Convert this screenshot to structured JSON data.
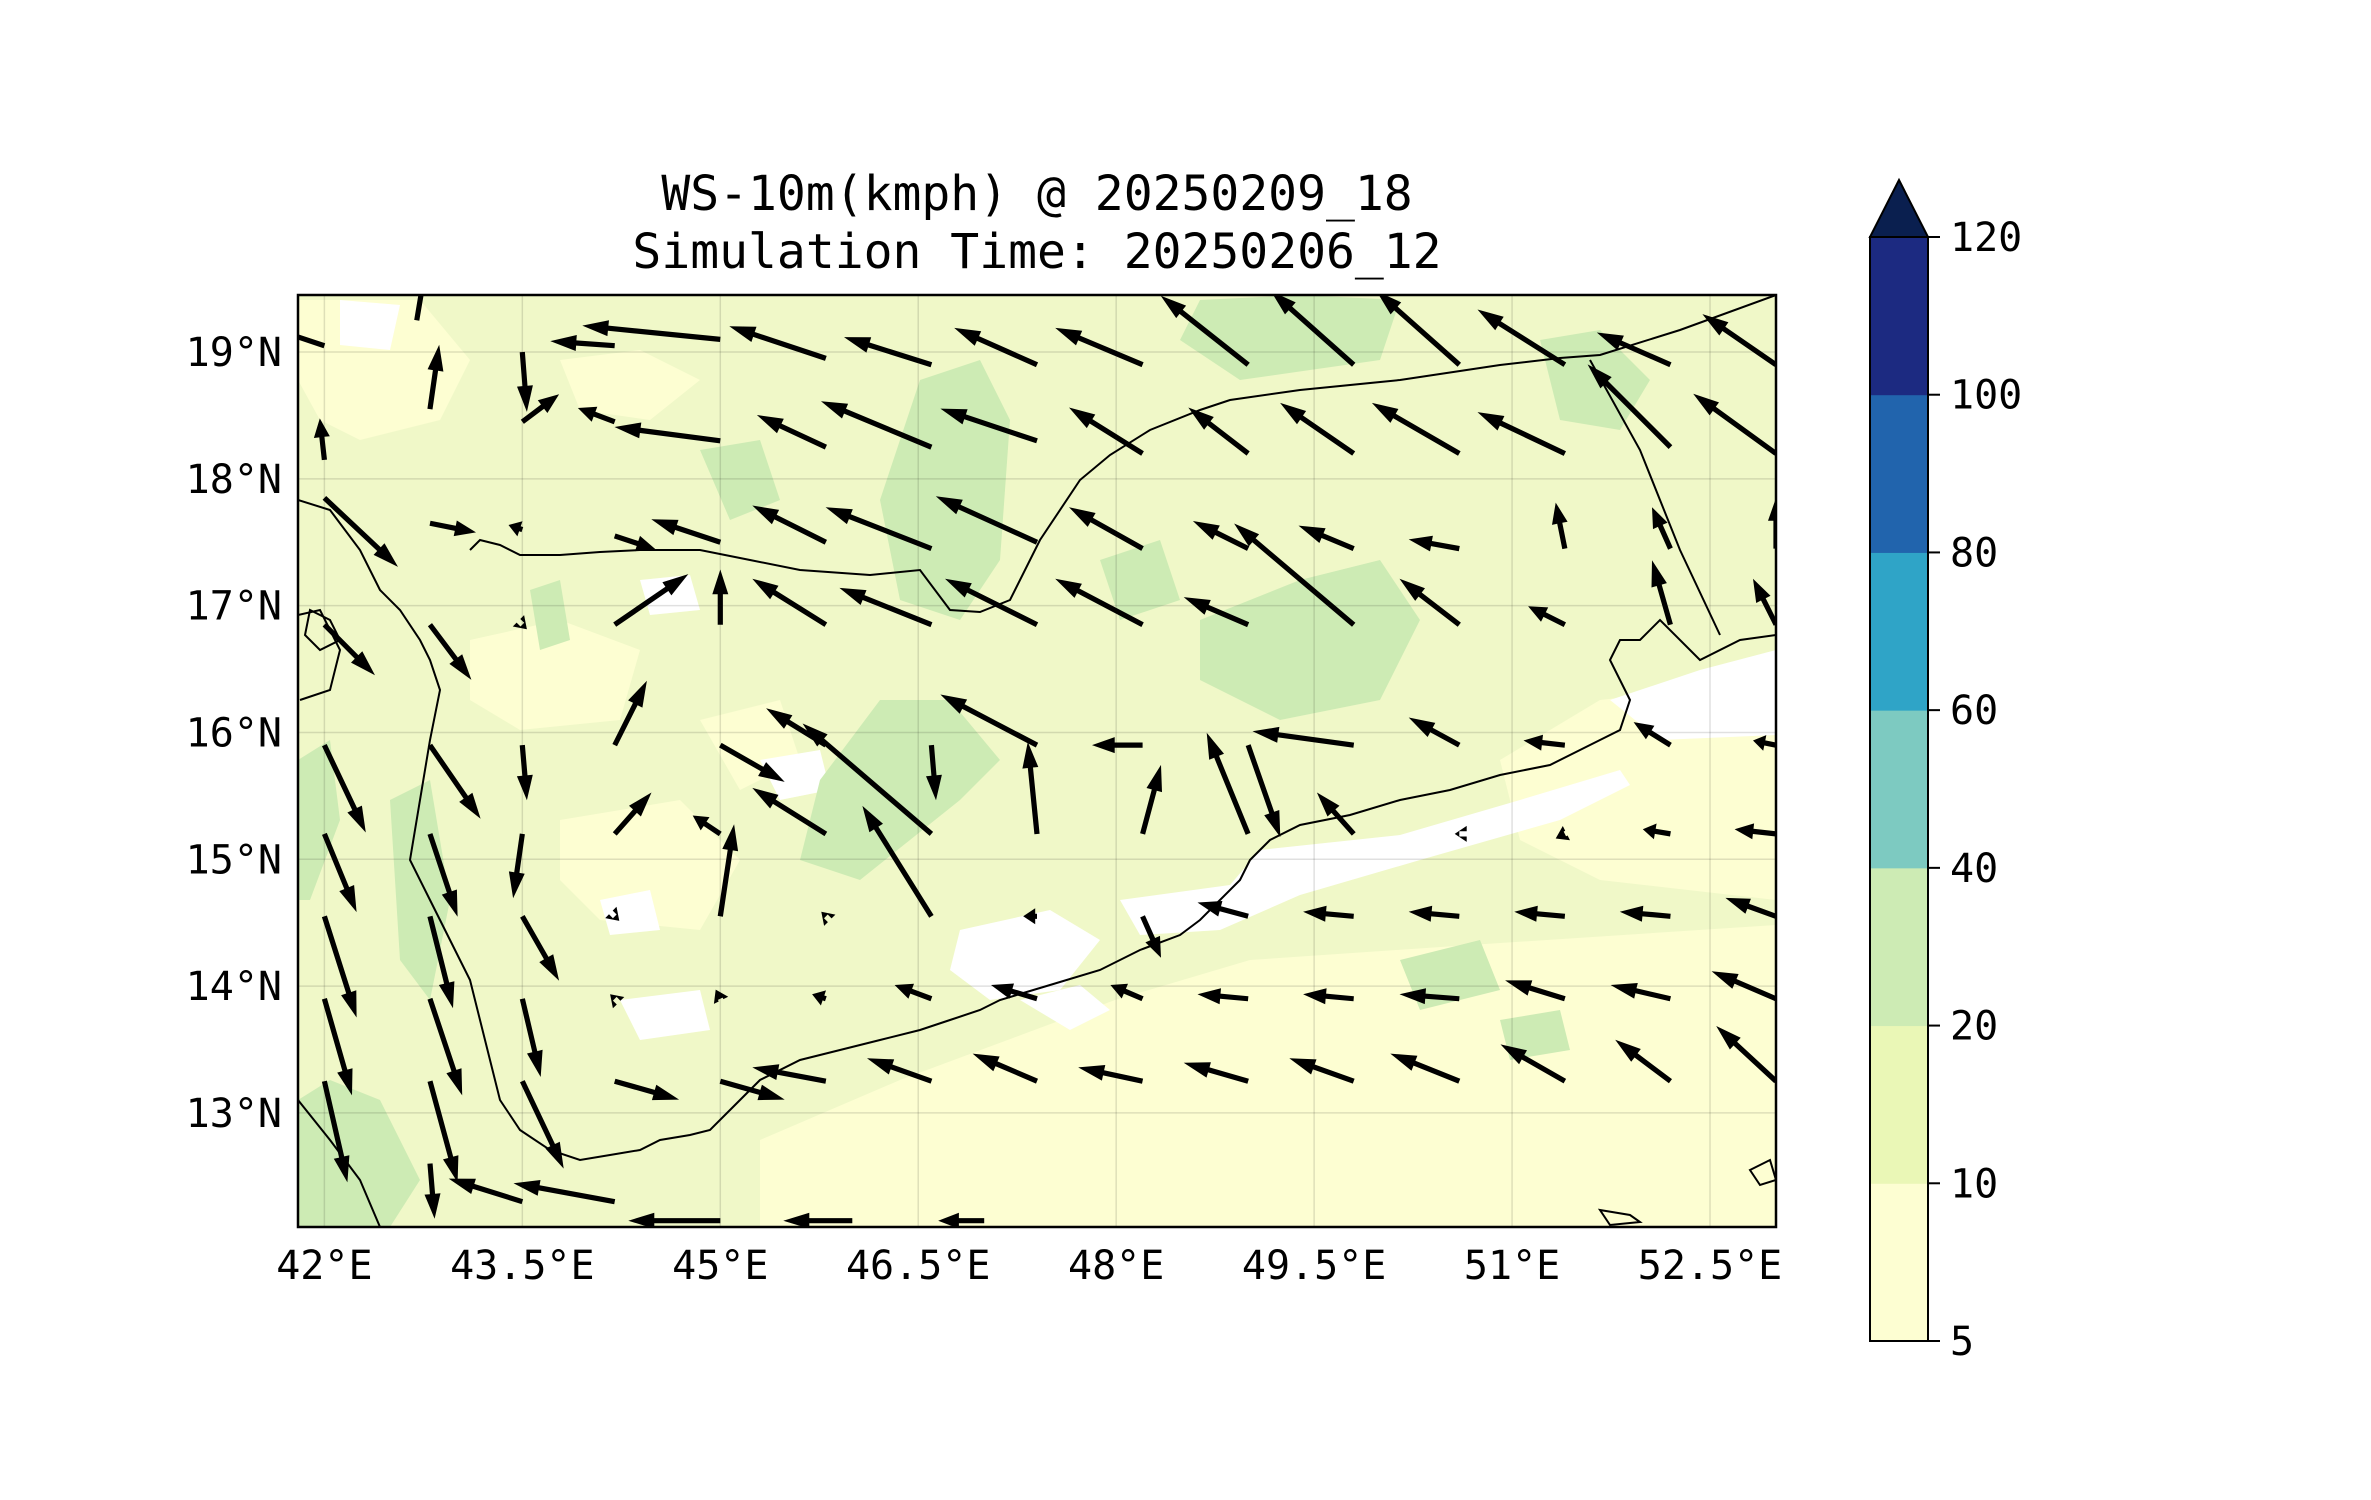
{
  "title": {
    "line1": "WS-10m(kmph) @ 20250209_18",
    "line2": "Simulation Time: 20250206_12"
  },
  "map": {
    "lon_range": [
      41.8,
      53.0
    ],
    "lat_range": [
      12.1,
      19.45
    ],
    "lon_ticks": [
      {
        "value": 42.0,
        "label": "42°E"
      },
      {
        "value": 43.5,
        "label": "43.5°E"
      },
      {
        "value": 45.0,
        "label": "45°E"
      },
      {
        "value": 46.5,
        "label": "46.5°E"
      },
      {
        "value": 48.0,
        "label": "48°E"
      },
      {
        "value": 49.5,
        "label": "49.5°E"
      },
      {
        "value": 51.0,
        "label": "51°E"
      },
      {
        "value": 52.5,
        "label": "52.5°E"
      }
    ],
    "lat_ticks": [
      {
        "value": 19.0,
        "label": "19°N"
      },
      {
        "value": 18.0,
        "label": "18°N"
      },
      {
        "value": 17.0,
        "label": "17°N"
      },
      {
        "value": 16.0,
        "label": "16°N"
      },
      {
        "value": 15.0,
        "label": "15°N"
      },
      {
        "value": 14.0,
        "label": "14°N"
      },
      {
        "value": 13.0,
        "label": "13°N"
      }
    ],
    "grid": true,
    "background_color": "#f0f8c8",
    "coastline_color": "#000000"
  },
  "colorbar": {
    "levels": [
      5,
      10,
      20,
      40,
      60,
      80,
      100,
      120
    ],
    "labels": [
      "5",
      "10",
      "20",
      "40",
      "60",
      "80",
      "100",
      "120"
    ],
    "colors": [
      "#fdfed2",
      "#eaf7b6",
      "#cdebb4",
      "#7dcac1",
      "#2fa4c7",
      "#2164ad",
      "#1c2a81"
    ],
    "extend_color": "#0a1f4f",
    "extend": "max"
  },
  "chart_data": {
    "type": "quiver",
    "units": "kmph",
    "vectors": [
      [
        42.0,
        19.05,
        -1.2,
        0.4
      ],
      [
        42.7,
        19.25,
        0.3,
        1.8
      ],
      [
        43.5,
        19.0,
        0.1,
        -1.3
      ],
      [
        44.2,
        19.05,
        -1.4,
        0.1
      ],
      [
        45.0,
        19.1,
        -3.0,
        0.3
      ],
      [
        45.8,
        18.95,
        -2.1,
        0.7
      ],
      [
        46.6,
        18.9,
        -1.9,
        0.6
      ],
      [
        47.4,
        18.9,
        -1.8,
        0.8
      ],
      [
        48.2,
        18.9,
        -1.9,
        0.8
      ],
      [
        49.0,
        18.9,
        -1.9,
        1.5
      ],
      [
        49.8,
        18.9,
        -1.8,
        1.6
      ],
      [
        50.6,
        18.9,
        -1.8,
        1.6
      ],
      [
        51.4,
        18.9,
        -1.9,
        1.2
      ],
      [
        52.2,
        18.9,
        -1.6,
        0.7
      ],
      [
        53.0,
        18.9,
        -1.6,
        1.1
      ],
      [
        42.0,
        18.15,
        -0.1,
        0.9
      ],
      [
        42.8,
        18.55,
        0.2,
        1.4
      ],
      [
        43.5,
        18.45,
        0.8,
        0.6
      ],
      [
        44.2,
        18.45,
        -0.8,
        0.3
      ],
      [
        45.0,
        18.3,
        -2.3,
        0.3
      ],
      [
        45.8,
        18.25,
        -1.5,
        0.7
      ],
      [
        46.6,
        18.25,
        -2.4,
        1.0
      ],
      [
        47.4,
        18.3,
        -2.1,
        0.7
      ],
      [
        48.2,
        18.2,
        -1.6,
        1.0
      ],
      [
        49.0,
        18.2,
        -1.3,
        1.0
      ],
      [
        49.8,
        18.2,
        -1.6,
        1.1
      ],
      [
        50.6,
        18.2,
        -1.9,
        1.1
      ],
      [
        51.4,
        18.2,
        -1.9,
        0.9
      ],
      [
        52.2,
        18.25,
        -1.8,
        1.8
      ],
      [
        53.0,
        18.2,
        -1.8,
        1.3
      ],
      [
        42.0,
        17.85,
        1.6,
        -1.5
      ],
      [
        42.8,
        17.65,
        1.0,
        -0.2
      ],
      [
        43.5,
        17.6,
        -0.3,
        0.1
      ],
      [
        44.2,
        17.55,
        0.9,
        -0.3
      ],
      [
        45.0,
        17.5,
        -1.5,
        0.5
      ],
      [
        45.8,
        17.5,
        -1.6,
        0.8
      ],
      [
        46.6,
        17.45,
        -2.3,
        0.9
      ],
      [
        47.4,
        17.5,
        -2.2,
        1.0
      ],
      [
        48.2,
        17.45,
        -1.6,
        0.9
      ],
      [
        49.0,
        17.45,
        -1.2,
        0.6
      ],
      [
        49.8,
        17.45,
        -1.2,
        0.5
      ],
      [
        50.6,
        17.45,
        -1.1,
        0.2
      ],
      [
        51.4,
        17.45,
        -0.2,
        1.0
      ],
      [
        52.2,
        17.45,
        -0.4,
        0.9
      ],
      [
        53.0,
        17.45,
        0.0,
        1.1
      ],
      [
        42.0,
        16.85,
        1.1,
        -1.1
      ],
      [
        42.8,
        16.85,
        0.9,
        -1.2
      ],
      [
        43.5,
        16.85,
        0.1,
        -0.1
      ],
      [
        44.2,
        16.85,
        1.6,
        1.1
      ],
      [
        45.0,
        16.85,
        0.0,
        1.2
      ],
      [
        45.8,
        16.85,
        -1.6,
        1.0
      ],
      [
        46.6,
        16.85,
        -2.0,
        0.8
      ],
      [
        47.4,
        16.85,
        -2.0,
        1.0
      ],
      [
        48.2,
        16.85,
        -1.9,
        1.0
      ],
      [
        49.0,
        16.85,
        -1.4,
        0.6
      ],
      [
        49.8,
        16.85,
        -2.6,
        2.2
      ],
      [
        50.6,
        16.85,
        -1.3,
        1.0
      ],
      [
        51.4,
        16.85,
        -0.8,
        0.4
      ],
      [
        52.2,
        16.85,
        -0.4,
        1.4
      ],
      [
        53.0,
        16.85,
        -0.5,
        1.0
      ],
      [
        42.0,
        15.9,
        0.9,
        -1.9
      ],
      [
        42.8,
        15.9,
        1.1,
        -1.6
      ],
      [
        43.5,
        15.9,
        0.1,
        -1.2
      ],
      [
        44.2,
        15.9,
        0.7,
        1.4
      ],
      [
        45.0,
        15.9,
        1.4,
        -0.8
      ],
      [
        45.8,
        15.9,
        -1.3,
        0.8
      ],
      [
        46.6,
        15.9,
        0.1,
        -1.2
      ],
      [
        47.4,
        15.9,
        -2.1,
        1.1
      ],
      [
        48.2,
        15.9,
        -1.1,
        0.0
      ],
      [
        49.0,
        15.9,
        0.7,
        -2.0
      ],
      [
        49.8,
        15.9,
        -2.2,
        0.3
      ],
      [
        50.6,
        15.9,
        -1.1,
        0.6
      ],
      [
        51.4,
        15.9,
        -0.9,
        0.1
      ],
      [
        52.2,
        15.9,
        -0.8,
        0.5
      ],
      [
        53.0,
        15.9,
        -0.5,
        0.1
      ],
      [
        42.0,
        15.2,
        0.7,
        -1.7
      ],
      [
        42.8,
        15.2,
        0.6,
        -1.8
      ],
      [
        43.5,
        15.2,
        -0.2,
        -1.4
      ],
      [
        44.2,
        15.2,
        0.8,
        0.9
      ],
      [
        45.0,
        15.2,
        -0.6,
        0.4
      ],
      [
        45.8,
        15.2,
        -1.6,
        1.0
      ],
      [
        46.6,
        15.2,
        -2.8,
        2.4
      ],
      [
        47.4,
        15.2,
        -0.2,
        2.0
      ],
      [
        48.2,
        15.2,
        0.4,
        1.5
      ],
      [
        49.0,
        15.2,
        -0.9,
        2.2
      ],
      [
        49.8,
        15.2,
        -0.8,
        0.9
      ],
      [
        50.6,
        15.2,
        -0.1,
        0.0
      ],
      [
        51.4,
        15.2,
        -0.2,
        -0.1
      ],
      [
        52.2,
        15.2,
        -0.6,
        0.1
      ],
      [
        53.0,
        15.2,
        -0.9,
        0.1
      ],
      [
        42.0,
        14.55,
        0.7,
        -2.2
      ],
      [
        42.8,
        14.55,
        0.5,
        -2.0
      ],
      [
        43.5,
        14.55,
        0.8,
        -1.4
      ],
      [
        44.2,
        14.55,
        0.1,
        -0.1
      ],
      [
        45.0,
        14.55,
        0.3,
        2.0
      ],
      [
        45.8,
        14.55,
        -0.1,
        0.1
      ],
      [
        46.6,
        14.55,
        -1.5,
        2.4
      ],
      [
        47.4,
        14.55,
        -0.3,
        0.0
      ],
      [
        48.2,
        14.55,
        0.4,
        -0.9
      ],
      [
        49.0,
        14.55,
        -1.1,
        0.3
      ],
      [
        49.8,
        14.55,
        -1.1,
        0.1
      ],
      [
        50.6,
        14.55,
        -1.1,
        0.1
      ],
      [
        51.4,
        14.55,
        -1.1,
        0.1
      ],
      [
        52.2,
        14.55,
        -1.1,
        0.1
      ],
      [
        53.0,
        14.55,
        -1.1,
        0.4
      ],
      [
        42.0,
        13.9,
        0.6,
        -2.1
      ],
      [
        42.8,
        13.9,
        0.7,
        -2.1
      ],
      [
        43.5,
        13.9,
        0.4,
        -1.7
      ],
      [
        44.2,
        13.9,
        -0.1,
        0.1
      ],
      [
        45.0,
        13.9,
        -0.1,
        0.2
      ],
      [
        45.8,
        13.9,
        -0.3,
        0.1
      ],
      [
        46.6,
        13.9,
        -0.8,
        0.3
      ],
      [
        47.4,
        13.9,
        -1.0,
        0.3
      ],
      [
        48.2,
        13.9,
        -0.7,
        0.3
      ],
      [
        49.0,
        13.9,
        -1.1,
        0.1
      ],
      [
        49.8,
        13.9,
        -1.1,
        0.1
      ],
      [
        50.6,
        13.9,
        -1.3,
        0.1
      ],
      [
        51.4,
        13.9,
        -1.3,
        0.4
      ],
      [
        52.2,
        13.9,
        -1.3,
        0.3
      ],
      [
        53.0,
        13.9,
        -1.4,
        0.6
      ],
      [
        42.0,
        13.25,
        0.5,
        -2.2
      ],
      [
        42.8,
        13.25,
        0.6,
        -2.2
      ],
      [
        43.5,
        13.25,
        0.9,
        -1.9
      ],
      [
        44.2,
        13.25,
        1.4,
        -0.4
      ],
      [
        45.0,
        13.25,
        1.4,
        -0.4
      ],
      [
        45.8,
        13.25,
        -1.6,
        0.3
      ],
      [
        46.6,
        13.25,
        -1.4,
        0.5
      ],
      [
        47.4,
        13.25,
        -1.4,
        0.6
      ],
      [
        48.2,
        13.25,
        -1.4,
        0.3
      ],
      [
        49.0,
        13.25,
        -1.4,
        0.4
      ],
      [
        49.8,
        13.25,
        -1.4,
        0.5
      ],
      [
        50.6,
        13.25,
        -1.5,
        0.6
      ],
      [
        51.4,
        13.25,
        -1.4,
        0.8
      ],
      [
        52.2,
        13.25,
        -1.2,
        0.9
      ],
      [
        53.0,
        13.25,
        -1.3,
        1.2
      ],
      [
        42.8,
        12.6,
        0.1,
        -1.2
      ],
      [
        43.5,
        12.3,
        -1.6,
        0.5
      ],
      [
        44.2,
        12.3,
        -2.2,
        0.4
      ],
      [
        45.0,
        12.15,
        -2.0,
        0.0
      ],
      [
        46.0,
        12.15,
        -1.5,
        0.0
      ],
      [
        47.0,
        12.15,
        -1.0,
        0.0
      ]
    ]
  }
}
